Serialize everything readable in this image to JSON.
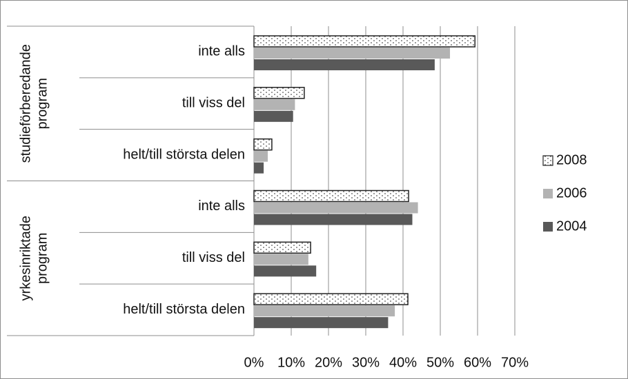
{
  "chart_data": {
    "type": "bar",
    "orientation": "horizontal",
    "categories": [
      "inte alls",
      "till viss del",
      "helt/till största delen",
      "inte alls",
      "till viss del",
      "helt/till största delen"
    ],
    "groups": [
      {
        "label": [
          "studieförberedande",
          "program"
        ]
      },
      {
        "label": [
          "yrkesinriktade",
          "program"
        ]
      }
    ],
    "series": [
      {
        "name": "2008",
        "color": "#ffffff",
        "pattern": "dots",
        "values": [
          59.3,
          13.5,
          4.8,
          41.5,
          15.2,
          41.3
        ]
      },
      {
        "name": "2006",
        "color": "#b3b3b3",
        "values": [
          52.6,
          11,
          3.7,
          44,
          14.6,
          37.8
        ]
      },
      {
        "name": "2004",
        "color": "#595959",
        "values": [
          48.5,
          10.5,
          2.6,
          42.5,
          16.7,
          36
        ]
      }
    ],
    "xlim": [
      0,
      70
    ],
    "xticks": [
      {
        "value": 0,
        "label": "0%"
      },
      {
        "value": 10,
        "label": "10%"
      },
      {
        "value": 20,
        "label": "20%"
      },
      {
        "value": 30,
        "label": "30%"
      },
      {
        "value": 40,
        "label": "40%"
      },
      {
        "value": 50,
        "label": "50%"
      },
      {
        "value": 60,
        "label": "60%"
      },
      {
        "value": 70,
        "label": "70%"
      }
    ],
    "grid": true,
    "legend": "right"
  }
}
